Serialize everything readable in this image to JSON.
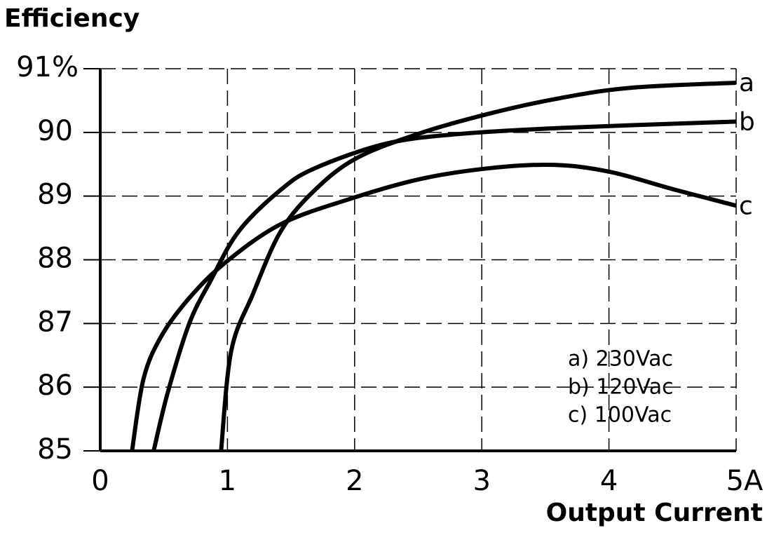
{
  "chart_data": {
    "type": "line",
    "y_label": "Efficiency",
    "x_label": "Output Current",
    "xlim": [
      0,
      5
    ],
    "ylim": [
      85,
      91
    ],
    "xticks": [
      0,
      1,
      2,
      3,
      4,
      {
        "value": 5,
        "label": "5A"
      }
    ],
    "yticks": [
      85,
      86,
      87,
      88,
      89,
      90,
      {
        "value": 91,
        "label": "91%"
      }
    ],
    "grid": true,
    "series": [
      {
        "name": "a) 230Vac",
        "end_label": "a",
        "color": "#000000",
        "x": [
          0.95,
          1.03,
          1.2,
          1.42,
          1.69,
          2.02,
          2.52,
          3.07,
          3.62,
          4.17,
          5
        ],
        "values": [
          85,
          86.57,
          87.46,
          88.45,
          89.1,
          89.6,
          89.99,
          90.3,
          90.54,
          90.7,
          90.78
        ]
      },
      {
        "name": "b) 120Vac",
        "end_label": "b",
        "color": "#000000",
        "x": [
          0.42,
          0.53,
          0.7,
          0.87,
          1.09,
          1.42,
          1.69,
          2.24,
          2.79,
          3.62,
          5
        ],
        "values": [
          85,
          85.91,
          87.0,
          87.68,
          88.45,
          89.1,
          89.44,
          89.82,
          89.97,
          90.07,
          90.17
        ]
      },
      {
        "name": "c) 100Vac",
        "end_label": "c",
        "color": "#000000",
        "x": [
          0.25,
          0.34,
          0.48,
          0.7,
          0.98,
          1.42,
          1.97,
          2.52,
          3.07,
          3.57,
          4.01,
          4.5,
          5
        ],
        "values": [
          85,
          86.13,
          86.8,
          87.4,
          87.95,
          88.56,
          88.96,
          89.27,
          89.44,
          89.49,
          89.38,
          89.11,
          88.85
        ]
      }
    ]
  }
}
